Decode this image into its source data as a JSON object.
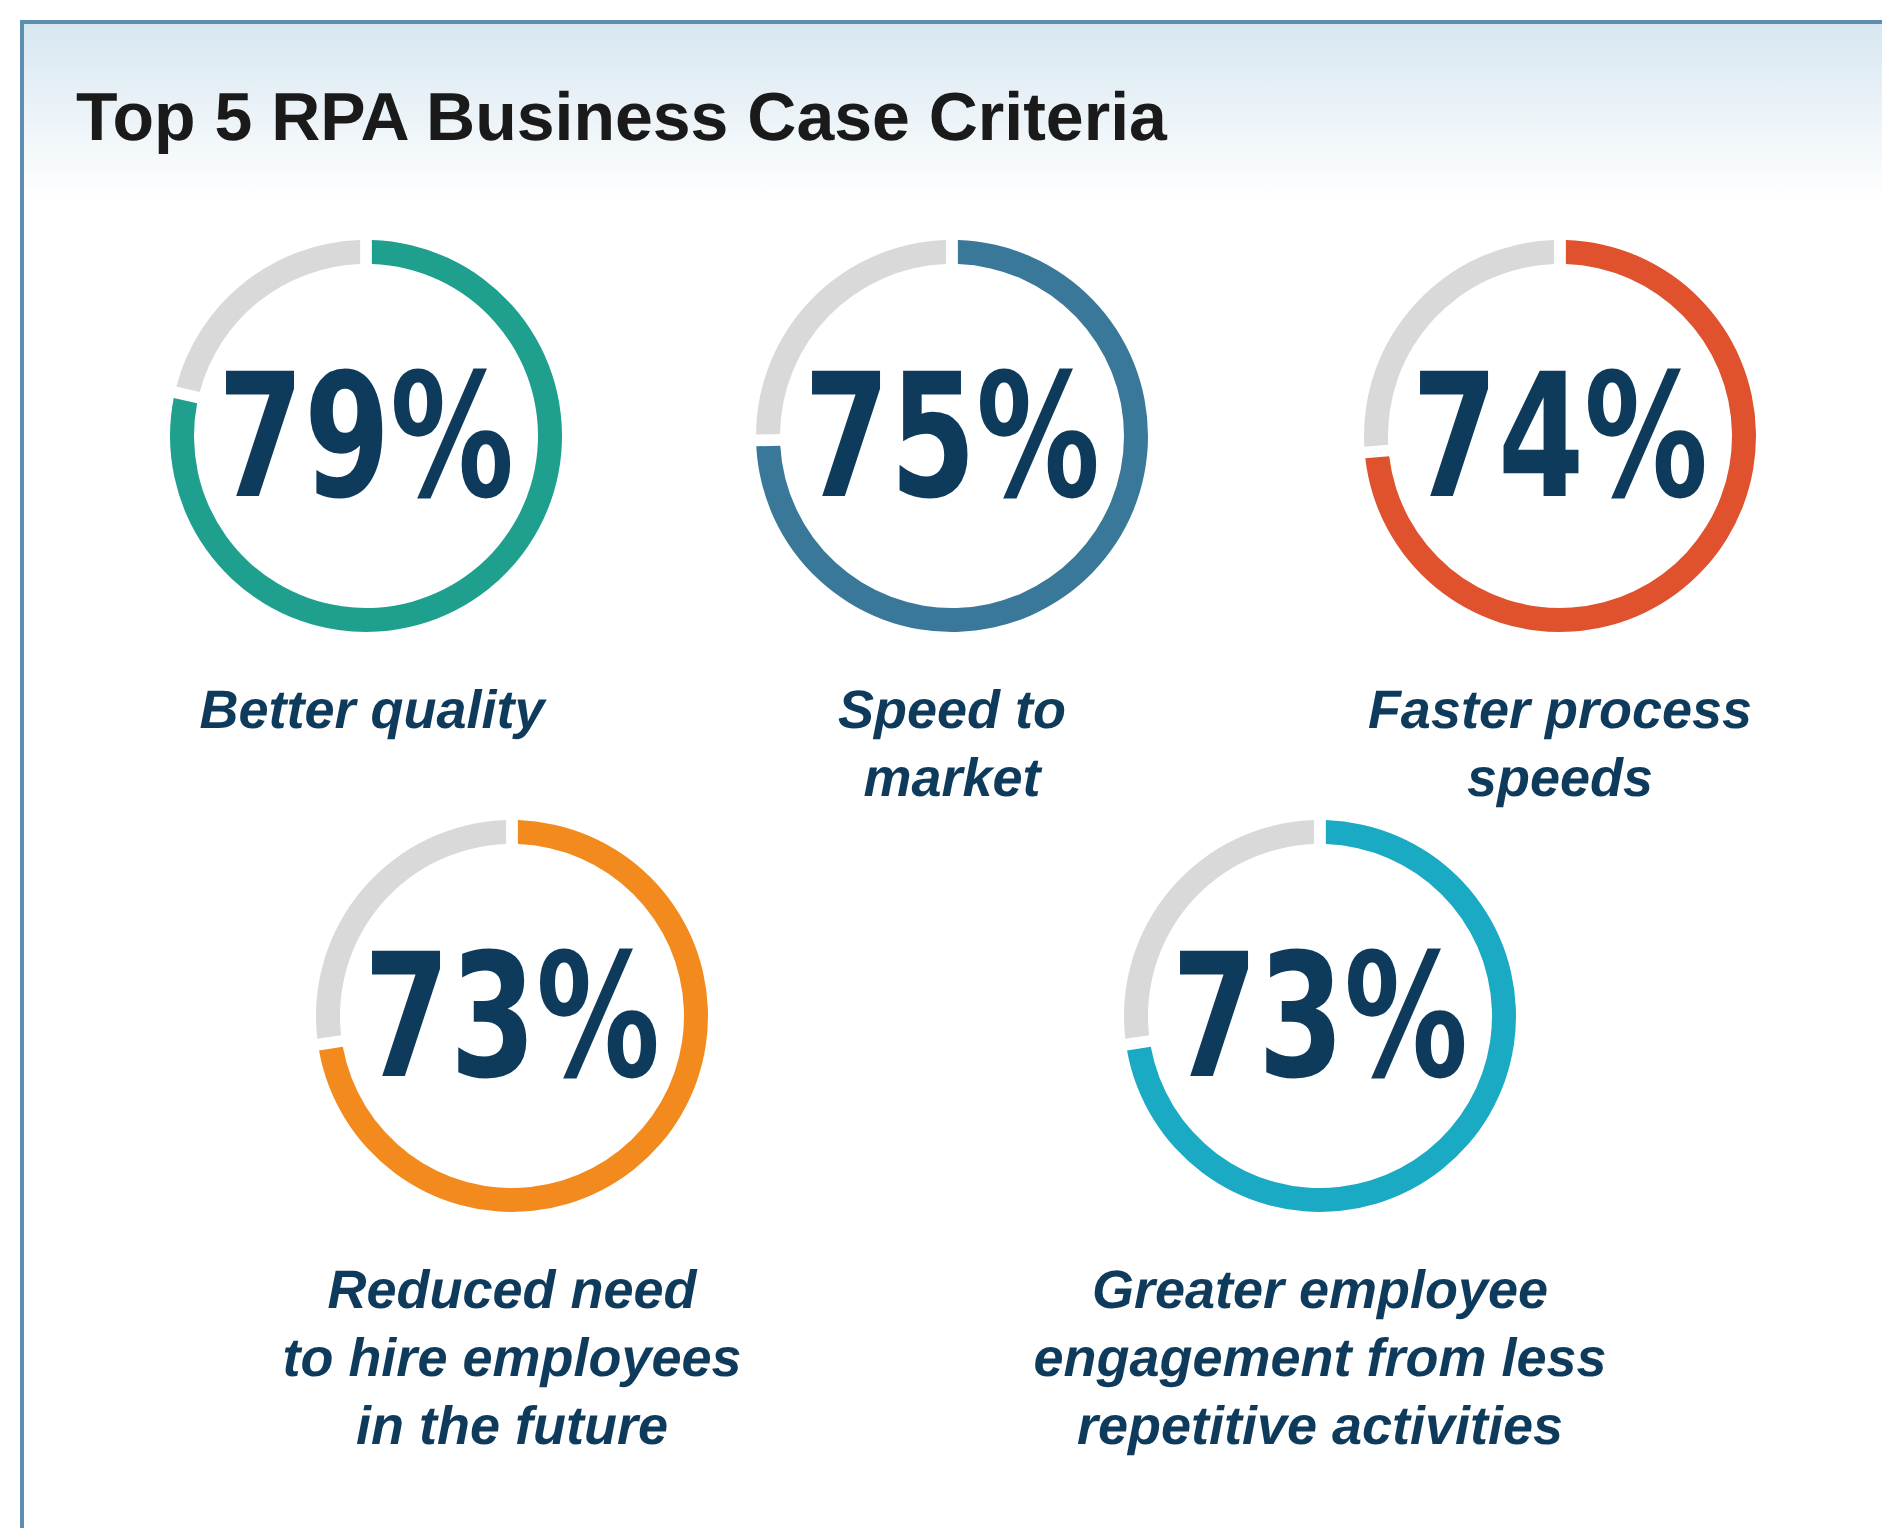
{
  "chart_data": [
    {
      "type": "donut",
      "title": "Top 5 RPA Business Case Criteria",
      "categories": [
        "Better quality",
        null
      ],
      "values": [
        79,
        21
      ],
      "colors": [
        "#1fa08e",
        "#d9d9d9"
      ],
      "value_labels": [
        "79%",
        null
      ]
    },
    {
      "type": "donut",
      "categories": [
        "Speed to\nmarket",
        null
      ],
      "values": [
        75,
        25
      ],
      "colors": [
        "#3a7899",
        "#d9d9d9"
      ],
      "value_labels": [
        "75%",
        null
      ]
    },
    {
      "type": "donut",
      "categories": [
        "Faster process\nspeeds",
        null
      ],
      "values": [
        74,
        26
      ],
      "colors": [
        "#e0512e",
        "#d9d9d9"
      ],
      "value_labels": [
        "74%",
        null
      ]
    },
    {
      "type": "donut",
      "categories": [
        "Reduced need\nto hire employees\nin the future",
        null
      ],
      "values": [
        73,
        27
      ],
      "colors": [
        "#f28a1e",
        "#d9d9d9"
      ],
      "value_labels": [
        "73%",
        null
      ]
    },
    {
      "type": "donut",
      "categories": [
        "Greater employee\nengagement from less\nrepetitive activities",
        null
      ],
      "values": [
        73,
        27
      ],
      "colors": [
        "#1aaac4",
        "#d9d9d9"
      ],
      "value_labels": [
        "73%",
        null
      ]
    }
  ]
}
